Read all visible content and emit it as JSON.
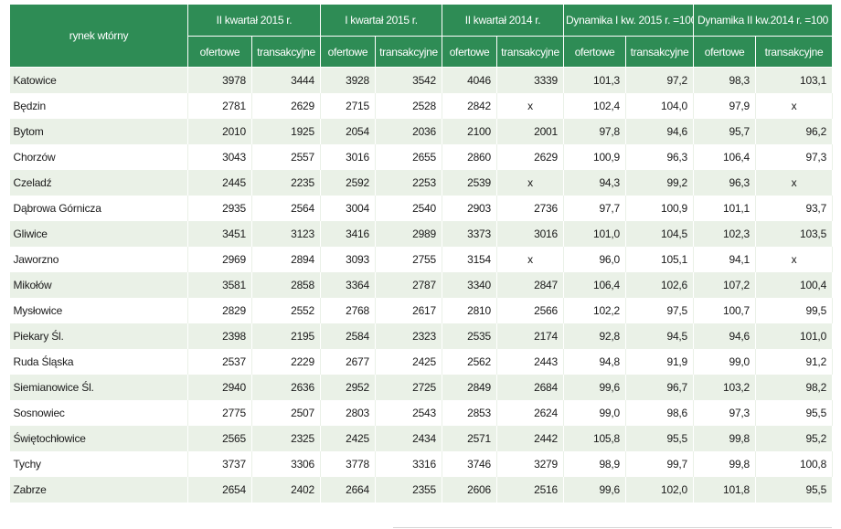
{
  "header": {
    "corner": "rynek wtórny",
    "groups": [
      "II kwartał 2015 r.",
      "I kwartał 2015 r.",
      "II kwartał 2014 r.",
      "Dynamika I kw. 2015 r. =100",
      "Dynamika II kw.2014 r. =100"
    ],
    "sub": [
      "ofertowe",
      "transakcyjne",
      "ofertowe",
      "transakcyjne",
      "ofertowe",
      "transakcyjne",
      "ofertowe",
      "transakcyjne",
      "ofertowe",
      "transakcyjne"
    ]
  },
  "rows": [
    [
      "Katowice",
      "3978",
      "3444",
      "3928",
      "3542",
      "4046",
      "3339",
      "101,3",
      "97,2",
      "98,3",
      "103,1"
    ],
    [
      "Będzin",
      "2781",
      "2629",
      "2715",
      "2528",
      "2842",
      "x",
      "102,4",
      "104,0",
      "97,9",
      "x"
    ],
    [
      "Bytom",
      "2010",
      "1925",
      "2054",
      "2036",
      "2100",
      "2001",
      "97,8",
      "94,6",
      "95,7",
      "96,2"
    ],
    [
      "Chorzów",
      "3043",
      "2557",
      "3016",
      "2655",
      "2860",
      "2629",
      "100,9",
      "96,3",
      "106,4",
      "97,3"
    ],
    [
      "Czeladź",
      "2445",
      "2235",
      "2592",
      "2253",
      "2539",
      "x",
      "94,3",
      "99,2",
      "96,3",
      "x"
    ],
    [
      "Dąbrowa Górnicza",
      "2935",
      "2564",
      "3004",
      "2540",
      "2903",
      "2736",
      "97,7",
      "100,9",
      "101,1",
      "93,7"
    ],
    [
      "Gliwice",
      "3451",
      "3123",
      "3416",
      "2989",
      "3373",
      "3016",
      "101,0",
      "104,5",
      "102,3",
      "103,5"
    ],
    [
      "Jaworzno",
      "2969",
      "2894",
      "3093",
      "2755",
      "3154",
      "x",
      "96,0",
      "105,1",
      "94,1",
      "x"
    ],
    [
      "Mikołów",
      "3581",
      "2858",
      "3364",
      "2787",
      "3340",
      "2847",
      "106,4",
      "102,6",
      "107,2",
      "100,4"
    ],
    [
      "Mysłowice",
      "2829",
      "2552",
      "2768",
      "2617",
      "2810",
      "2566",
      "102,2",
      "97,5",
      "100,7",
      "99,5"
    ],
    [
      "Piekary Śl.",
      "2398",
      "2195",
      "2584",
      "2323",
      "2535",
      "2174",
      "92,8",
      "94,5",
      "94,6",
      "101,0"
    ],
    [
      "Ruda Śląska",
      "2537",
      "2229",
      "2677",
      "2425",
      "2562",
      "2443",
      "94,8",
      "91,9",
      "99,0",
      "91,2"
    ],
    [
      "Siemianowice Śl.",
      "2940",
      "2636",
      "2952",
      "2725",
      "2849",
      "2684",
      "99,6",
      "96,7",
      "103,2",
      "98,2"
    ],
    [
      "Sosnowiec",
      "2775",
      "2507",
      "2803",
      "2543",
      "2853",
      "2624",
      "99,0",
      "98,6",
      "97,3",
      "95,5"
    ],
    [
      "Świętochłowice",
      "2565",
      "2325",
      "2425",
      "2434",
      "2571",
      "2442",
      "105,8",
      "95,5",
      "99,8",
      "95,2"
    ],
    [
      "Tychy",
      "3737",
      "3306",
      "3778",
      "3316",
      "3746",
      "3279",
      "98,9",
      "99,7",
      "99,8",
      "100,8"
    ],
    [
      "Zabrze",
      "2654",
      "2402",
      "2664",
      "2355",
      "2606",
      "2516",
      "99,6",
      "102,0",
      "101,8",
      "95,5"
    ]
  ]
}
